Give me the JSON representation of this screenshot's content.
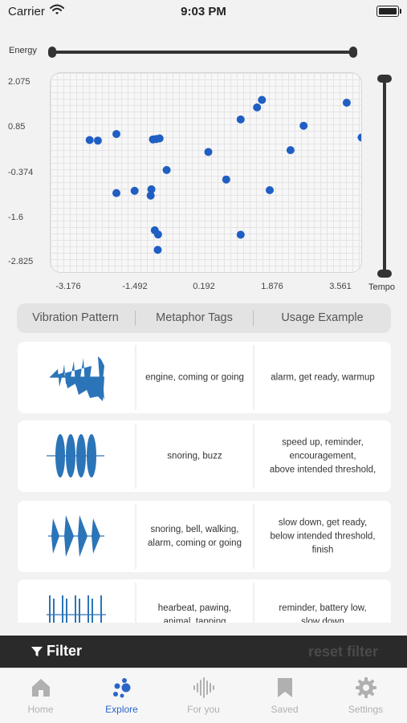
{
  "status_bar": {
    "carrier": "Carrier",
    "time": "9:03 PM"
  },
  "filters": {
    "energy_label": "Energy",
    "tempo_label": "Tempo",
    "energy_range": [
      0.0,
      1.0
    ],
    "tempo_range": [
      0.0,
      1.0
    ]
  },
  "chart_data": {
    "type": "scatter",
    "x_ticks": [
      "-3.176",
      "-1.492",
      "0.192",
      "1.876",
      "3.561"
    ],
    "y_ticks": [
      "2.075",
      "0.85",
      "-0.374",
      "-1.6",
      "-2.825"
    ],
    "xlim": [
      -4.05,
      4.3
    ],
    "ylim": [
      -3.45,
      2.85
    ],
    "grid": true,
    "marker_color": "#1f5fc4",
    "points": [
      [
        -3.0,
        0.73
      ],
      [
        -2.78,
        0.71
      ],
      [
        -2.28,
        0.92
      ],
      [
        -1.21,
        0.76
      ],
      [
        -1.12,
        0.78
      ],
      [
        -1.3,
        0.75
      ],
      [
        -0.93,
        -0.22
      ],
      [
        -2.28,
        -0.95
      ],
      [
        -1.79,
        -0.88
      ],
      [
        -1.34,
        -0.83
      ],
      [
        -1.36,
        -1.03
      ],
      [
        -1.25,
        -2.13
      ],
      [
        -1.16,
        -2.26
      ],
      [
        -1.17,
        -2.75
      ],
      [
        0.19,
        0.35
      ],
      [
        0.67,
        -0.52
      ],
      [
        1.06,
        -2.27
      ],
      [
        1.06,
        1.38
      ],
      [
        1.5,
        1.76
      ],
      [
        1.63,
        2.0
      ],
      [
        1.84,
        -0.86
      ],
      [
        2.4,
        0.41
      ],
      [
        2.75,
        1.18
      ],
      [
        3.91,
        1.91
      ],
      [
        4.31,
        0.81
      ]
    ]
  },
  "segments": [
    "Vibration Pattern",
    "Metaphor Tags",
    "Usage Example"
  ],
  "rows": [
    {
      "pattern_icon": "vibration-waveform-1",
      "tags": "engine, coming or going",
      "usage": "alarm, get ready, warmup"
    },
    {
      "pattern_icon": "vibration-waveform-2",
      "tags": "snoring, buzz",
      "usage": "speed up, reminder,\nencouragement,\nabove intended threshold,"
    },
    {
      "pattern_icon": "vibration-waveform-3",
      "tags": "snoring, bell, walking,\nalarm, coming or going",
      "usage": "slow down, get ready,\nbelow intended threshold,\nfinish"
    },
    {
      "pattern_icon": "vibration-waveform-4",
      "tags": "hearbeat, pawing,\nanimal, tapping",
      "usage": "reminder, battery low,\nslow down"
    }
  ],
  "filter_bar": {
    "filter_label": "Filter",
    "reset_label": "reset filter"
  },
  "tabs": [
    {
      "label": "Home",
      "icon": "home-icon"
    },
    {
      "label": "Explore",
      "icon": "explore-icon",
      "active": true
    },
    {
      "label": "For you",
      "icon": "waveform-icon"
    },
    {
      "label": "Saved",
      "icon": "bookmark-icon"
    },
    {
      "label": "Settings",
      "icon": "gear-icon"
    }
  ],
  "colors": {
    "accent": "#2a66c9",
    "wave": "#2b74b8",
    "dark_bar": "#2a2a2a"
  }
}
